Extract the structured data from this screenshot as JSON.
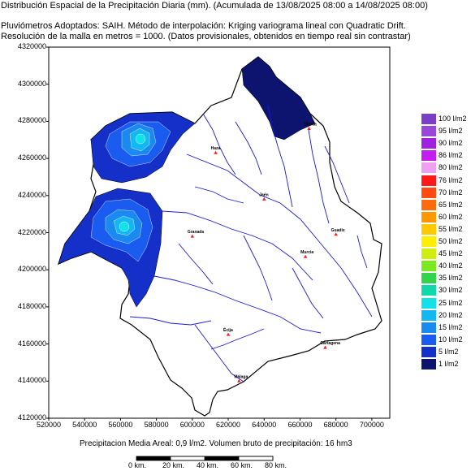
{
  "header": {
    "title": "Distribución Espacial de la Precipitación Diaria (mm). (Acumulada de 13/08/2025 08:00 a 14/08/2025 08:00)",
    "line2": "Pluviómetros Adoptados: SAIH.  Método de interpolación: Kriging variograma lineal con Quadratic Drift.",
    "line3": "Resolución de la malla en metros = 1000. (Datos provisionales, obtenidos en tiempo real sin contrastar)"
  },
  "axes": {
    "y_ticks": [
      "4320000",
      "4300000",
      "4280000",
      "4260000",
      "4240000",
      "4220000",
      "4200000",
      "4180000",
      "4160000",
      "4140000",
      "4120000"
    ],
    "x_ticks": [
      "520000",
      "540000",
      "560000",
      "580000",
      "600000",
      "620000",
      "640000",
      "660000",
      "680000",
      "700000"
    ],
    "x_range": [
      520000,
      710000
    ],
    "y_range": [
      4120000,
      4320000
    ]
  },
  "legend": {
    "items": [
      {
        "label": "100 l/m2",
        "color": "#7b3fc7"
      },
      {
        "label": "95 l/m2",
        "color": "#9a46d8"
      },
      {
        "label": "90 l/m2",
        "color": "#a020e0"
      },
      {
        "label": "86 l/m2",
        "color": "#c21cf0"
      },
      {
        "label": "80 l/m2",
        "color": "#f0a0f0"
      },
      {
        "label": "76 l/m2",
        "color": "#ff1818"
      },
      {
        "label": "70 l/m2",
        "color": "#ff4b10"
      },
      {
        "label": "65 l/m2",
        "color": "#ff6a0a"
      },
      {
        "label": "60 l/m2",
        "color": "#ff9800"
      },
      {
        "label": "55 l/m2",
        "color": "#ffc800"
      },
      {
        "label": "50 l/m2",
        "color": "#ffee00"
      },
      {
        "label": "45 l/m2",
        "color": "#cfee10"
      },
      {
        "label": "40 l/m2",
        "color": "#7ce820"
      },
      {
        "label": "35 l/m2",
        "color": "#33d44c"
      },
      {
        "label": "30 l/m2",
        "color": "#10d8a8"
      },
      {
        "label": "25 l/m2",
        "color": "#14e0e8"
      },
      {
        "label": "20 l/m2",
        "color": "#14b8f0"
      },
      {
        "label": "15 l/m2",
        "color": "#1a8af0"
      },
      {
        "label": "10 l/m2",
        "color": "#1a5cf0"
      },
      {
        "label": "5 l/m2",
        "color": "#1530c8"
      },
      {
        "label": "1 l/m2",
        "color": "#0c1470"
      }
    ]
  },
  "towns": [
    {
      "name": "Haza",
      "x": 613000,
      "y": 4263000
    },
    {
      "name": "Jaén",
      "x": 640000,
      "y": 4238000
    },
    {
      "name": "Granada",
      "x": 600000,
      "y": 4218000
    },
    {
      "name": "Écija",
      "x": 620000,
      "y": 4165000
    },
    {
      "name": "Guadix",
      "x": 680000,
      "y": 4219000
    },
    {
      "name": "Murcia",
      "x": 663000,
      "y": 4207000
    },
    {
      "name": "Cartagena",
      "x": 674000,
      "y": 4158000
    },
    {
      "name": "Málaga",
      "x": 626000,
      "y": 4140000
    },
    {
      "name": "Úbeda",
      "x": 665000,
      "y": 4276000
    }
  ],
  "footer": {
    "summary": "Precipitacion Media Areal: 0,9 l/m2. Volumen bruto de precipitación: 16 hm3",
    "scale_labels": [
      "0 km.",
      "20 km.",
      "40 km.",
      "60 km.",
      "80 km."
    ]
  },
  "colors": {
    "basin_fill": "#ffffff",
    "rivers": "#1a1ad8",
    "outline": "#000000",
    "background": "#ffffff"
  }
}
